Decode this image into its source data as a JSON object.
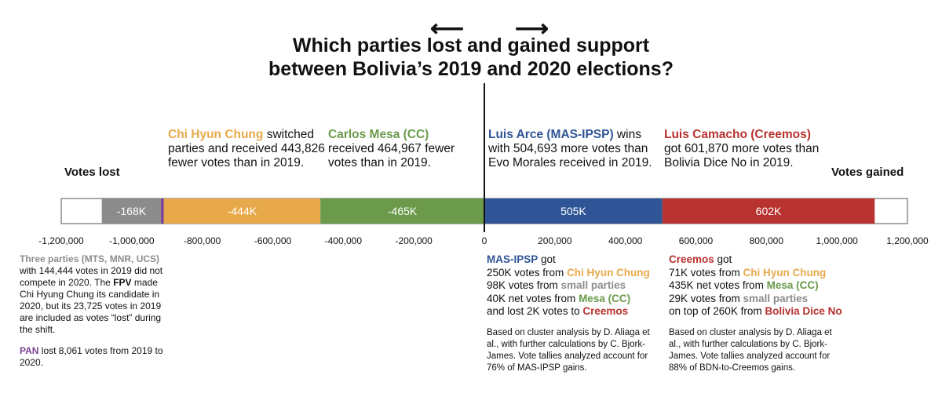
{
  "title_line1": "Which parties lost and gained support",
  "title_line2": "between Bolivia’s 2019 and 2020 elections?",
  "arrows": {
    "left": "⟵",
    "right": "⟶"
  },
  "side_labels": {
    "lost": "Votes lost",
    "gained": "Votes gained"
  },
  "colors": {
    "gray": "#8c8c8c",
    "purple": "#7b3f94",
    "orange": "#e8a94a",
    "green": "#6a9a4a",
    "blue": "#2f5596",
    "red": "#b8322f",
    "track_border": "#555555",
    "axis": "#111111"
  },
  "annotations": {
    "chung": {
      "name": "Chi Hyun Chung",
      "rest": " switched parties and received 443,826 fewer votes than in 2019."
    },
    "mesa": {
      "name": "Carlos Mesa (CC)",
      "rest": " received 464,967 fewer votes than in 2019."
    },
    "arce": {
      "name": "Luis Arce (MAS-IPSP)",
      "rest": " wins with 504,693 more votes than Evo Morales received in 2019."
    },
    "camacho": {
      "name": "Luis Camacho (Creemos)",
      "rest": " got 601,870 more votes than Bolivia Dice No in 2019."
    }
  },
  "left_notes": {
    "three_parties_bold": "Three parties (MTS, MNR, UCS)",
    "three_parties_rest_1": " with 144,444 votes in 2019 did not compete in 2020. The ",
    "fpv": "FPV",
    "three_parties_rest_2": " made Chi Hyung Chung its candidate in 2020, but its 23,725 votes in 2019 are included as votes “lost” during the shift.",
    "pan": "PAN",
    "pan_rest": " lost 8,061 votes from 2019 to 2020."
  },
  "mas_block": {
    "head": "MAS-IPSP",
    "head_rest": " got",
    "l1a": "250K votes from ",
    "l1b": "Chi Hyun Chung",
    "l2a": "98K votes from ",
    "l2b": "small parties",
    "l3a": "40K net votes from ",
    "l3b": "Mesa (CC)",
    "l4a": "and lost 2K votes to ",
    "l4b": "Creemos",
    "note": "Based on cluster analysis by D. Aliaga et al., with further calculations by C. Bjork-James. Vote tallies analyzed account for 76% of MAS-IPSP gains."
  },
  "creemos_block": {
    "head": "Creemos",
    "head_rest": " got",
    "l1a": "71K votes from ",
    "l1b": "Chi Hyun Chung",
    "l2a": "435K net votes from ",
    "l2b": "Mesa (CC)",
    "l3a": "29K votes from ",
    "l3b": "small parties",
    "l4a": "on top of 260K from ",
    "l4b": "Bolivia Dice No",
    "note": "Based on cluster analysis by D. Aliaga et al., with further calculations by C. Bjork-James. Vote tallies analyzed account for 88% of BDN-to-Creemos gains."
  },
  "chart_data": {
    "type": "bar",
    "orientation": "horizontal-stacked",
    "xlim": [
      -1200000,
      1200000
    ],
    "ticks": [
      -1200000,
      -1000000,
      -800000,
      -600000,
      -400000,
      -200000,
      0,
      200000,
      400000,
      600000,
      800000,
      1000000,
      1200000
    ],
    "tick_labels": [
      "-1,200,000",
      "-1,000,000",
      "-800,000",
      "-600,000",
      "-400,000",
      "-200,000",
      "0",
      "200,000",
      "400,000",
      "600,000",
      "800,000",
      "1,000,000",
      "1,200,000"
    ],
    "segments": [
      {
        "start": -1085000,
        "end": -917000,
        "label": "-168K",
        "color": "#8c8c8c"
      },
      {
        "start": -917000,
        "end": -909000,
        "label": "",
        "color": "#7b3f94"
      },
      {
        "start": -909000,
        "end": -465000,
        "label": "-444K",
        "color": "#e8a94a"
      },
      {
        "start": -465000,
        "end": 0,
        "label": "-465K",
        "color": "#6a9a4a"
      },
      {
        "start": 0,
        "end": 505000,
        "label": "505K",
        "color": "#2f5596"
      },
      {
        "start": 505000,
        "end": 1107000,
        "label": "602K",
        "color": "#b8322f"
      }
    ],
    "track": [
      -1200000,
      1200000
    ]
  }
}
